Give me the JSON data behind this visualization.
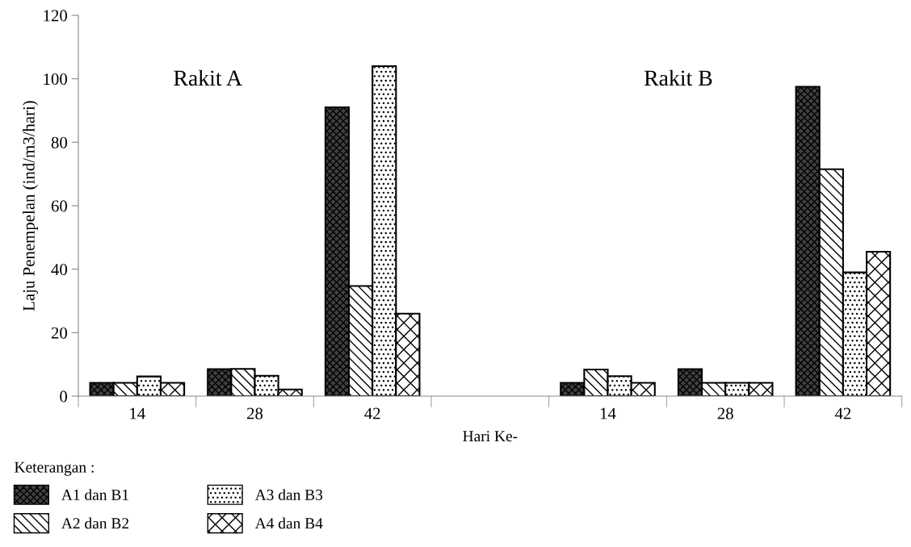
{
  "chart_data": {
    "type": "bar",
    "xlabel": "Hari Ke-",
    "ylabel": "Laju Penempelan (ind/m3/hari)",
    "legend_title": "Keterangan :",
    "categories": [
      "14",
      "28",
      "42",
      null,
      "14",
      "28",
      "42"
    ],
    "series": [
      {
        "name": "A1 dan B1",
        "color": "#404040",
        "values": [
          4.2,
          8.5,
          91,
          null,
          4.2,
          8.5,
          97.5
        ]
      },
      {
        "name": "A2 dan B2",
        "color": "#ffffff",
        "values": [
          4.2,
          8.6,
          34.7,
          null,
          8.4,
          4.2,
          71.5
        ]
      },
      {
        "name": "A3 dan B3",
        "color": "#ffffff",
        "values": [
          6.2,
          6.4,
          104,
          null,
          6.3,
          4.2,
          39
        ]
      },
      {
        "name": "A4 dan B4",
        "color": "#ffffff",
        "values": [
          4.2,
          2.1,
          26,
          null,
          4.2,
          4.2,
          45.5
        ]
      }
    ],
    "annotations": [
      "Rakit A",
      "Rakit B"
    ],
    "ylim": [
      0,
      120
    ],
    "yticks": [
      0,
      20,
      40,
      60,
      80,
      100,
      120
    ],
    "grid": false,
    "legend": "bottom left"
  }
}
